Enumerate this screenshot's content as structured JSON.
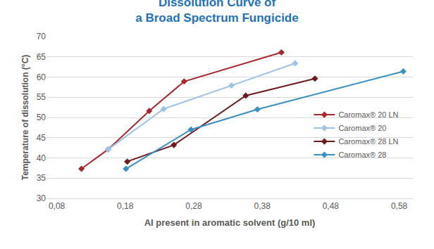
{
  "chart_data": {
    "type": "line",
    "title": "Dissolution Curve of a Broad Spectrum Fungicide",
    "x_label": "AI present in aromatic solvent (g/10 ml)",
    "y_label": "Temperature of dissolution (°C)",
    "xlim": [
      0.065,
      0.6
    ],
    "xticks": [
      {
        "value": 0.08,
        "label": "0,08"
      },
      {
        "value": 0.18,
        "label": "0,18"
      },
      {
        "value": 0.28,
        "label": "0,28"
      },
      {
        "value": 0.38,
        "label": "0,38"
      },
      {
        "value": 0.48,
        "label": "0,48"
      },
      {
        "value": 0.58,
        "label": "0,58"
      }
    ],
    "ylim": [
      30,
      70
    ],
    "yticks": [
      30,
      35,
      40,
      45,
      50,
      55,
      60,
      65,
      70
    ],
    "grid": true,
    "legend": "right",
    "marker": "diamond",
    "line_style": "solid",
    "series": [
      {
        "name": "Caromax® 20 LN",
        "color": "#A6282E",
        "x": [
          0.116,
          0.155,
          0.215,
          0.266,
          0.408
        ],
        "values": [
          37.3,
          42.1,
          51.6,
          58.9,
          66.1
        ]
      },
      {
        "name": "Caromax® 20",
        "color": "#9DC3E6",
        "x": [
          0.155,
          0.236,
          0.335,
          0.428
        ],
        "values": [
          42.1,
          52.1,
          57.9,
          63.4
        ]
      },
      {
        "name": "Caromax® 28 LN",
        "color": "#6B1B1E",
        "x": [
          0.183,
          0.251,
          0.356,
          0.457
        ],
        "values": [
          39.1,
          43.2,
          55.4,
          59.6
        ]
      },
      {
        "name": "Caromax® 28",
        "color": "#3A8FC1",
        "x": [
          0.181,
          0.276,
          0.373,
          0.586
        ],
        "values": [
          37.3,
          47.0,
          52.0,
          61.4
        ]
      }
    ]
  }
}
